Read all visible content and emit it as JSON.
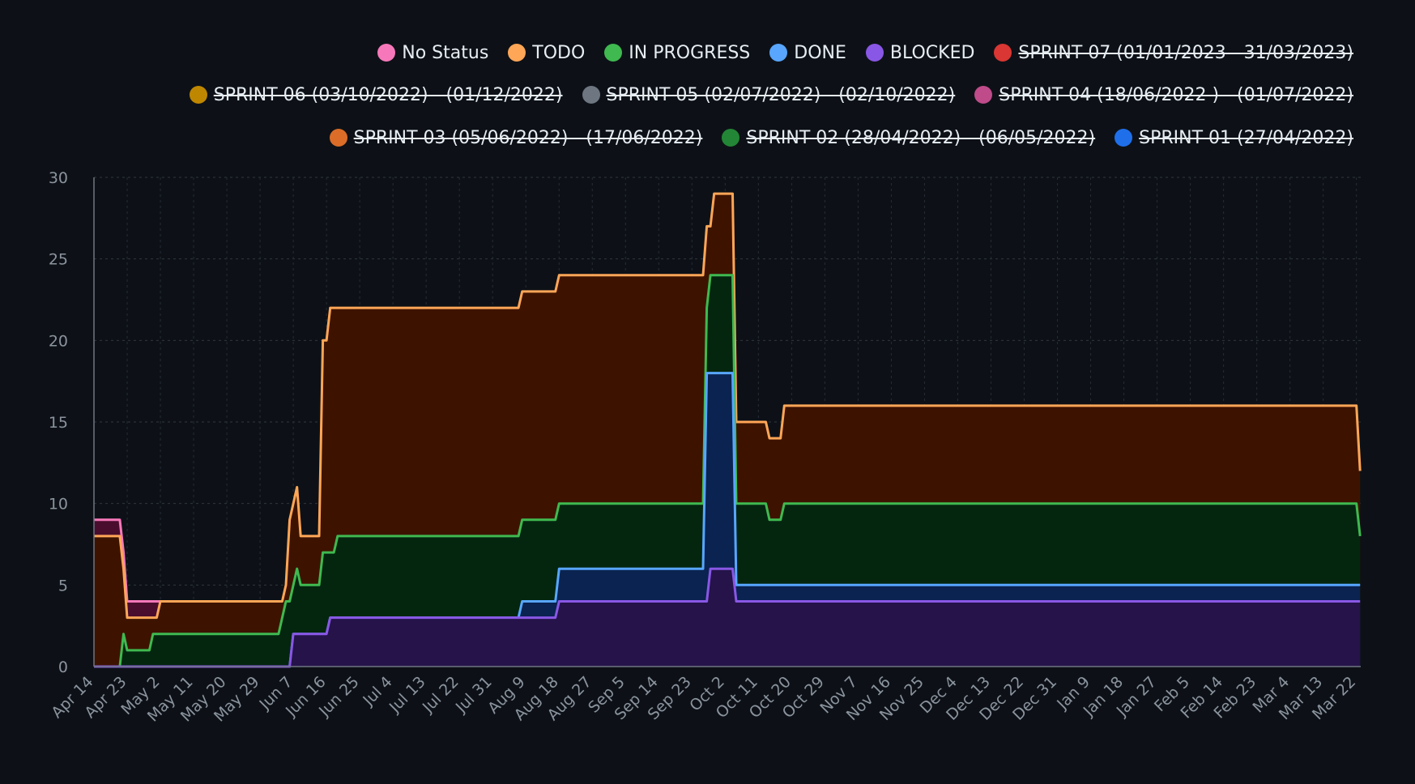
{
  "chart_data": {
    "type": "area",
    "title": "",
    "xlabel": "",
    "ylabel": "",
    "ylim": [
      0,
      30
    ],
    "yticks": [
      "0",
      "5",
      "10",
      "15",
      "20",
      "25",
      "30"
    ],
    "grid": true,
    "stacked": true,
    "legend_position": "top-right",
    "x_ticks": [
      "Apr 14",
      "Apr 23",
      "May 2",
      "May 11",
      "May 20",
      "May 29",
      "Jun 7",
      "Jun 16",
      "Jun 25",
      "Jul 4",
      "Jul 13",
      "Jul 22",
      "Jul 31",
      "Aug 9",
      "Aug 18",
      "Aug 27",
      "Sep 5",
      "Sep 14",
      "Sep 23",
      "Oct 2",
      "Oct 11",
      "Oct 20",
      "Oct 29",
      "Nov 7",
      "Nov 16",
      "Nov 25",
      "Dec 4",
      "Dec 13",
      "Dec 22",
      "Dec 31",
      "Jan 9",
      "Jan 18",
      "Jan 27",
      "Feb 5",
      "Feb 14",
      "Feb 23",
      "Mar 4",
      "Mar 13",
      "Mar 22"
    ],
    "legend": [
      {
        "name": "No Status",
        "color": "#f778ba",
        "hidden": false
      },
      {
        "name": "TODO",
        "color": "#ffa657",
        "hidden": false
      },
      {
        "name": "IN PROGRESS",
        "color": "#3fb950",
        "hidden": false
      },
      {
        "name": "DONE",
        "color": "#58a6ff",
        "hidden": false
      },
      {
        "name": "BLOCKED",
        "color": "#8957e5",
        "hidden": false
      },
      {
        "name": "SPRINT 07 (01/01/2023 - 31/03/2023)",
        "color": "#da3633",
        "hidden": true
      },
      {
        "name": "SPRINT 06 (03/10/2022) - (01/12/2022)",
        "color": "#bf8700",
        "hidden": true
      },
      {
        "name": "SPRINT 05 (02/07/2022) - (02/10/2022)",
        "color": "#6e7681",
        "hidden": true
      },
      {
        "name": "SPRINT 04 (18/06/2022 ) - (01/07/2022)",
        "color": "#bf4b8a",
        "hidden": true
      },
      {
        "name": "SPRINT 03 (05/06/2022) - (17/06/2022)",
        "color": "#db6d28",
        "hidden": true
      },
      {
        "name": "SPRINT 02 (28/04/2022) - (06/05/2022)",
        "color": "#238636",
        "hidden": true
      },
      {
        "name": "SPRINT 01 (27/04/2022)",
        "color": "#1f6feb",
        "hidden": true
      }
    ],
    "series": [
      {
        "name": "BLOCKED",
        "color": "#8957e5",
        "fill": "#25134a",
        "points": [
          [
            "2022-04-14",
            0
          ],
          [
            "2022-06-06",
            0
          ],
          [
            "2022-06-07",
            2
          ],
          [
            "2022-06-16",
            2
          ],
          [
            "2022-06-17",
            3
          ],
          [
            "2022-08-07",
            3
          ],
          [
            "2022-08-17",
            3
          ],
          [
            "2022-08-18",
            4
          ],
          [
            "2022-09-27",
            4
          ],
          [
            "2022-09-28",
            6
          ],
          [
            "2022-10-04",
            6
          ],
          [
            "2022-10-05",
            4
          ],
          [
            "2023-03-23",
            4
          ]
        ]
      },
      {
        "name": "DONE",
        "color": "#58a6ff",
        "fill": "#0a2350",
        "points": [
          [
            "2022-04-14",
            0
          ],
          [
            "2022-06-06",
            0
          ],
          [
            "2022-06-07",
            2
          ],
          [
            "2022-06-16",
            2
          ],
          [
            "2022-06-17",
            3
          ],
          [
            "2022-08-07",
            3
          ],
          [
            "2022-08-08",
            4
          ],
          [
            "2022-08-17",
            4
          ],
          [
            "2022-08-18",
            6
          ],
          [
            "2022-09-26",
            6
          ],
          [
            "2022-09-27",
            18
          ],
          [
            "2022-10-04",
            18
          ],
          [
            "2022-10-05",
            5
          ],
          [
            "2023-03-23",
            5
          ]
        ]
      },
      {
        "name": "IN PROGRESS",
        "color": "#3fb950",
        "fill": "#04260f",
        "points": [
          [
            "2022-04-14",
            0
          ],
          [
            "2022-04-21",
            0
          ],
          [
            "2022-04-22",
            2
          ],
          [
            "2022-04-23",
            1
          ],
          [
            "2022-04-29",
            1
          ],
          [
            "2022-04-30",
            2
          ],
          [
            "2022-06-03",
            2
          ],
          [
            "2022-06-05",
            4
          ],
          [
            "2022-06-06",
            4
          ],
          [
            "2022-06-08",
            6
          ],
          [
            "2022-06-09",
            5
          ],
          [
            "2022-06-14",
            5
          ],
          [
            "2022-06-15",
            7
          ],
          [
            "2022-06-18",
            7
          ],
          [
            "2022-06-19",
            8
          ],
          [
            "2022-08-07",
            8
          ],
          [
            "2022-08-08",
            9
          ],
          [
            "2022-08-17",
            9
          ],
          [
            "2022-08-18",
            10
          ],
          [
            "2022-09-26",
            10
          ],
          [
            "2022-09-27",
            22
          ],
          [
            "2022-09-28",
            24
          ],
          [
            "2022-10-04",
            24
          ],
          [
            "2022-10-05",
            10
          ],
          [
            "2022-10-13",
            10
          ],
          [
            "2022-10-14",
            9
          ],
          [
            "2022-10-17",
            9
          ],
          [
            "2022-10-18",
            10
          ],
          [
            "2023-03-22",
            10
          ],
          [
            "2023-03-23",
            8
          ]
        ]
      },
      {
        "name": "TODO",
        "color": "#ffa657",
        "fill": "#3d1300",
        "points": [
          [
            "2022-04-14",
            8
          ],
          [
            "2022-04-21",
            8
          ],
          [
            "2022-04-22",
            6
          ],
          [
            "2022-04-23",
            3
          ],
          [
            "2022-05-01",
            3
          ],
          [
            "2022-05-02",
            4
          ],
          [
            "2022-06-04",
            4
          ],
          [
            "2022-06-05",
            5
          ],
          [
            "2022-06-06",
            9
          ],
          [
            "2022-06-08",
            11
          ],
          [
            "2022-06-09",
            8
          ],
          [
            "2022-06-14",
            8
          ],
          [
            "2022-06-15",
            20
          ],
          [
            "2022-06-16",
            20
          ],
          [
            "2022-06-17",
            22
          ],
          [
            "2022-08-07",
            22
          ],
          [
            "2022-08-08",
            23
          ],
          [
            "2022-08-17",
            23
          ],
          [
            "2022-08-18",
            24
          ],
          [
            "2022-09-26",
            24
          ],
          [
            "2022-09-27",
            27
          ],
          [
            "2022-09-28",
            27
          ],
          [
            "2022-09-29",
            29
          ],
          [
            "2022-10-04",
            29
          ],
          [
            "2022-10-05",
            15
          ],
          [
            "2022-10-13",
            15
          ],
          [
            "2022-10-14",
            14
          ],
          [
            "2022-10-17",
            14
          ],
          [
            "2022-10-18",
            16
          ],
          [
            "2023-03-22",
            16
          ],
          [
            "2023-03-23",
            12
          ]
        ]
      },
      {
        "name": "No Status",
        "color": "#f778ba",
        "fill": "#4a0d2e",
        "points": [
          [
            "2022-04-14",
            9
          ],
          [
            "2022-04-21",
            9
          ],
          [
            "2022-04-22",
            7
          ],
          [
            "2022-04-23",
            4
          ],
          [
            "2022-05-01",
            4
          ],
          [
            "2022-05-02",
            4
          ]
        ]
      }
    ]
  }
}
